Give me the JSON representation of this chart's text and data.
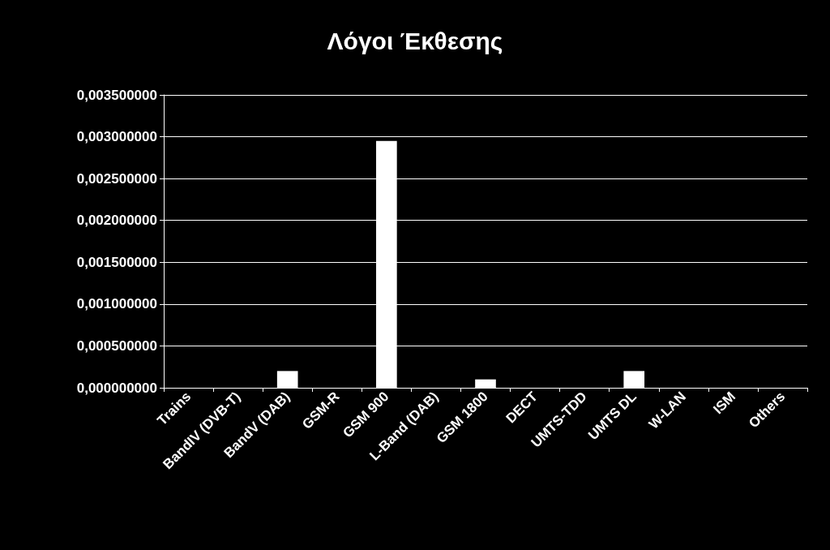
{
  "chart_data": {
    "type": "bar",
    "title": "Λόγοι Έκθεσης",
    "categories": [
      "Trains",
      "BandIV (DVB-T)",
      "BandV (DAB)",
      "GSM-R",
      "GSM 900",
      "L-Band (DAB)",
      "GSM 1800",
      "DECT",
      "UMTS-TDD",
      "UMTS DL",
      "W-LAN",
      "ISM",
      "Others"
    ],
    "values": [
      0,
      0,
      0.0002,
      0,
      0.00295,
      0,
      0.0001,
      0,
      0,
      0.0002,
      0,
      0,
      0
    ],
    "color": "#ffffff",
    "ylim": [
      0,
      0.0035
    ],
    "yticks": [
      {
        "value": 0,
        "label": "0,000000000"
      },
      {
        "value": 0.0005,
        "label": "0,000500000"
      },
      {
        "value": 0.001,
        "label": "0,001000000"
      },
      {
        "value": 0.0015,
        "label": "0,001500000"
      },
      {
        "value": 0.002,
        "label": "0,002000000"
      },
      {
        "value": 0.0025,
        "label": "0,002500000"
      },
      {
        "value": 0.003,
        "label": "0,003000000"
      },
      {
        "value": 0.0035,
        "label": "0,003500000"
      }
    ],
    "grid": "y"
  }
}
